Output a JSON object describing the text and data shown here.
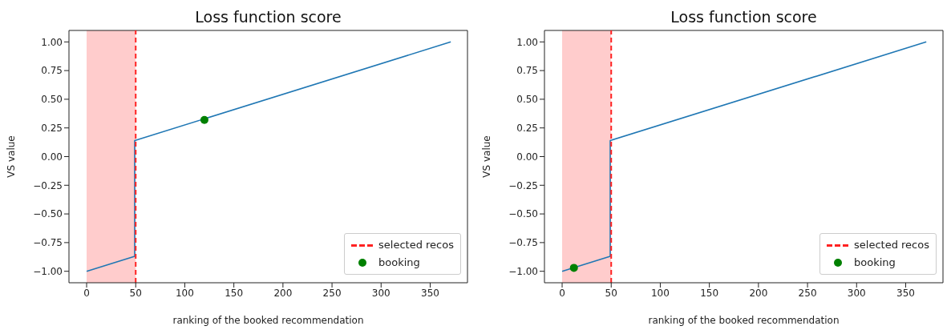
{
  "chart_data": [
    {
      "type": "line",
      "title": "Loss function score",
      "xlabel": "ranking of the booked recommendation",
      "ylabel": "VS value",
      "xlim": [
        -18,
        388
      ],
      "ylim": [
        -1.1,
        1.1
      ],
      "xticks": [
        0,
        50,
        100,
        150,
        200,
        250,
        300,
        350
      ],
      "yticks": [
        {
          "value": -1,
          "label": "−1.00"
        },
        {
          "value": -0.75,
          "label": "−0.75"
        },
        {
          "value": -0.5,
          "label": "−0.50"
        },
        {
          "value": -0.25,
          "label": "−0.25"
        },
        {
          "value": 0,
          "label": "0.00"
        },
        {
          "value": 0.25,
          "label": "0.25"
        },
        {
          "value": 0.5,
          "label": "0.50"
        },
        {
          "value": 0.75,
          "label": "0.75"
        },
        {
          "value": 1,
          "label": "1.00"
        }
      ],
      "series": [
        {
          "type": "line",
          "color": "#1f77b4",
          "x": [
            0,
            49,
            49,
            371
          ],
          "values": [
            -1,
            -0.87,
            0.14,
            1
          ],
          "marker": "none"
        },
        {
          "type": "line",
          "name": "selected recos",
          "color": "#ff2222",
          "x": [
            50,
            50
          ],
          "values": [
            -1.1,
            1.1
          ],
          "marker": "none",
          "line_style": "dashed"
        },
        {
          "type": "scatter",
          "name": "booking",
          "color": "#008000",
          "x": [
            120
          ],
          "values": [
            0.32
          ],
          "marker": "circle"
        }
      ],
      "bands": [
        {
          "axis": "x",
          "from": 0,
          "to": 50,
          "color": "#ffcccc"
        }
      ],
      "legend": "bottom right",
      "line_style": "solid",
      "grid": false
    },
    {
      "type": "line",
      "title": "Loss function score",
      "xlabel": "ranking of the booked recommendation",
      "ylabel": "VS value",
      "xlim": [
        -18,
        388
      ],
      "ylim": [
        -1.1,
        1.1
      ],
      "xticks": [
        0,
        50,
        100,
        150,
        200,
        250,
        300,
        350
      ],
      "yticks": [
        {
          "value": -1,
          "label": "−1.00"
        },
        {
          "value": -0.75,
          "label": "−0.75"
        },
        {
          "value": -0.5,
          "label": "−0.50"
        },
        {
          "value": -0.25,
          "label": "−0.25"
        },
        {
          "value": 0,
          "label": "0.00"
        },
        {
          "value": 0.25,
          "label": "0.25"
        },
        {
          "value": 0.5,
          "label": "0.50"
        },
        {
          "value": 0.75,
          "label": "0.75"
        },
        {
          "value": 1,
          "label": "1.00"
        }
      ],
      "series": [
        {
          "type": "line",
          "color": "#1f77b4",
          "x": [
            0,
            49,
            49,
            371
          ],
          "values": [
            -1,
            -0.87,
            0.14,
            1
          ],
          "marker": "none"
        },
        {
          "type": "line",
          "name": "selected recos",
          "color": "#ff2222",
          "x": [
            50,
            50
          ],
          "values": [
            -1.1,
            1.1
          ],
          "marker": "none",
          "line_style": "dashed"
        },
        {
          "type": "scatter",
          "name": "booking",
          "color": "#008000",
          "x": [
            12
          ],
          "values": [
            -0.97
          ],
          "marker": "circle"
        }
      ],
      "bands": [
        {
          "axis": "x",
          "from": 0,
          "to": 50,
          "color": "#ffcccc"
        }
      ],
      "legend": "bottom right",
      "line_style": "solid",
      "grid": false
    }
  ]
}
